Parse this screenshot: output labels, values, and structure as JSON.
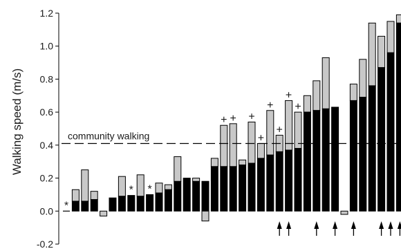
{
  "chart_data": {
    "type": "bar",
    "title": "",
    "xlabel": "",
    "ylabel": "Walking speed (m/s)",
    "ylim": [
      -0.2,
      1.2
    ],
    "yticks": [
      -0.2,
      0.0,
      0.2,
      0.4,
      0.6,
      0.8,
      1.0,
      1.2
    ],
    "ytick_labels": [
      "-0.2",
      "0.0",
      "0.2",
      "0.4",
      "0.6",
      "0.8",
      "1.0",
      "1.2"
    ],
    "grid": false,
    "legend": "none",
    "reference_line": {
      "label": "community walking",
      "value": 0.41,
      "style": "dashed"
    },
    "series_colors": {
      "baseline": "#000000",
      "change": "#c8c8c8"
    },
    "series": [
      {
        "name": "",
        "values": [
          0.0,
          0.06,
          0.06,
          0.07,
          0.0,
          0.08,
          0.09,
          0.095,
          0.09,
          0.1,
          0.11,
          0.13,
          0.18,
          0.2,
          0.18,
          0.18,
          0.27,
          0.27,
          0.27,
          0.28,
          0.29,
          0.32,
          0.34,
          0.36,
          0.37,
          0.38,
          0.6,
          0.61,
          0.62,
          0.63,
          0.0,
          0.67,
          0.69,
          0.76,
          0.87,
          0.96,
          1.14
        ]
      },
      {
        "name": "",
        "values": [
          0.0,
          0.13,
          0.25,
          0.12,
          -0.03,
          0.08,
          0.21,
          0.095,
          0.22,
          0.1,
          0.17,
          0.16,
          0.33,
          0.2,
          0.2,
          -0.06,
          0.32,
          0.52,
          0.53,
          0.31,
          0.54,
          0.41,
          0.61,
          0.46,
          0.67,
          0.6,
          0.7,
          0.79,
          0.93,
          0.63,
          -0.02,
          0.77,
          0.92,
          1.14,
          1.06,
          1.15,
          1.19
        ]
      }
    ],
    "marks": [
      {
        "bar": 0,
        "symbol": "*",
        "value": 0.0
      },
      {
        "bar": 7,
        "symbol": "*",
        "value": 0.095
      },
      {
        "bar": 9,
        "symbol": "*",
        "value": 0.1
      },
      {
        "bar": 17,
        "symbol": "+",
        "value": 0.52
      },
      {
        "bar": 18,
        "symbol": "+",
        "value": 0.53
      },
      {
        "bar": 20,
        "symbol": "+",
        "value": 0.54
      },
      {
        "bar": 21,
        "symbol": "+",
        "value": 0.41
      },
      {
        "bar": 22,
        "symbol": "+",
        "value": 0.61
      },
      {
        "bar": 23,
        "symbol": "+",
        "value": 0.46
      },
      {
        "bar": 24,
        "symbol": "+",
        "value": 0.67
      },
      {
        "bar": 25,
        "symbol": "+",
        "value": 0.6
      }
    ],
    "arrows": [
      23,
      24,
      27,
      29,
      31,
      34,
      35,
      36
    ]
  }
}
